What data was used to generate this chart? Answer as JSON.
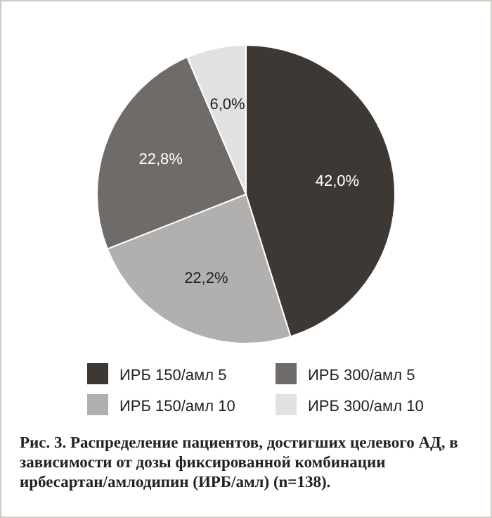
{
  "chart_data": {
    "type": "pie",
    "categories": [
      "ИРБ 150/амл 5",
      "ИРБ 150/амл 10",
      "ИРБ 300/амл 5",
      "ИРБ 300/амл 10"
    ],
    "values": [
      42.0,
      22.2,
      22.8,
      6.0
    ],
    "value_labels": [
      "42,0%",
      "22,2%",
      "22,8%",
      "6,0%"
    ],
    "colors": [
      "#3d3833",
      "#b2b0af",
      "#6f6b68",
      "#e2e1e1"
    ],
    "legend": "bottom",
    "annotations": [
      "Рис. 3. Распределение пациентов, достигших целевого АД, в зависимости от дозы фиксированной комбинации ирбесартан/амлодипин (ИРБ/амл) (n=138)."
    ]
  }
}
